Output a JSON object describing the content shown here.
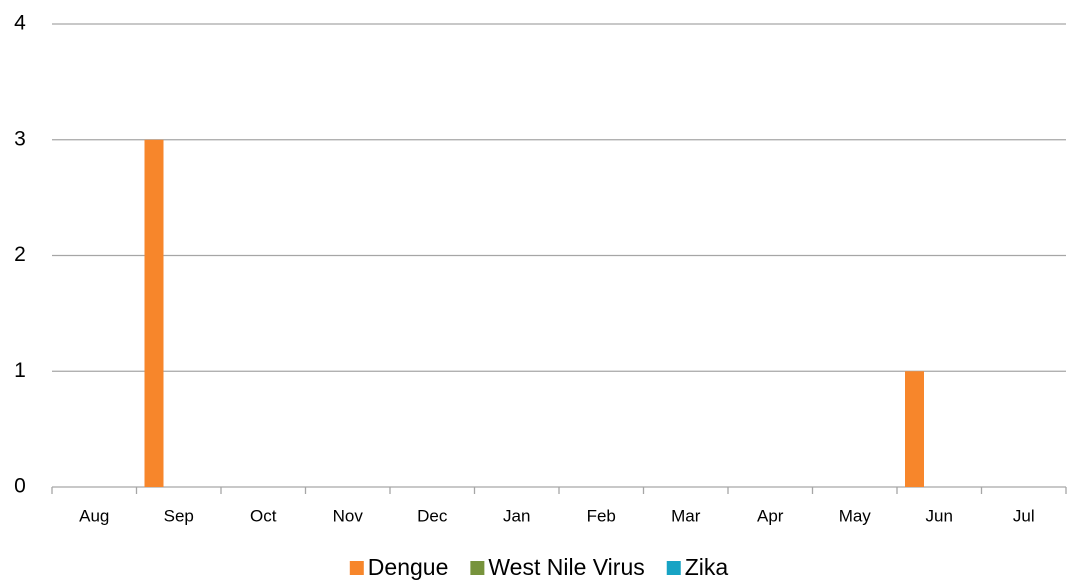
{
  "chart_data": {
    "type": "bar",
    "categories": [
      "Aug",
      "Sep",
      "Oct",
      "Nov",
      "Dec",
      "Jan",
      "Feb",
      "Mar",
      "Apr",
      "May",
      "Jun",
      "Jul"
    ],
    "series": [
      {
        "name": "Dengue",
        "color": "#f7862b",
        "values": [
          0,
          3,
          0,
          0,
          0,
          0,
          0,
          0,
          0,
          0,
          1,
          0
        ]
      },
      {
        "name": "West Nile Virus",
        "color": "#77933c",
        "values": [
          0,
          0,
          0,
          0,
          0,
          0,
          0,
          0,
          0,
          0,
          0,
          0
        ]
      },
      {
        "name": "Zika",
        "color": "#17a3c4",
        "values": [
          0,
          0,
          0,
          0,
          0,
          0,
          0,
          0,
          0,
          0,
          0,
          0
        ]
      }
    ],
    "ylim": [
      0,
      4
    ],
    "yticks": [
      0,
      1,
      2,
      3,
      4
    ],
    "grid": true,
    "legend": "bottom"
  }
}
